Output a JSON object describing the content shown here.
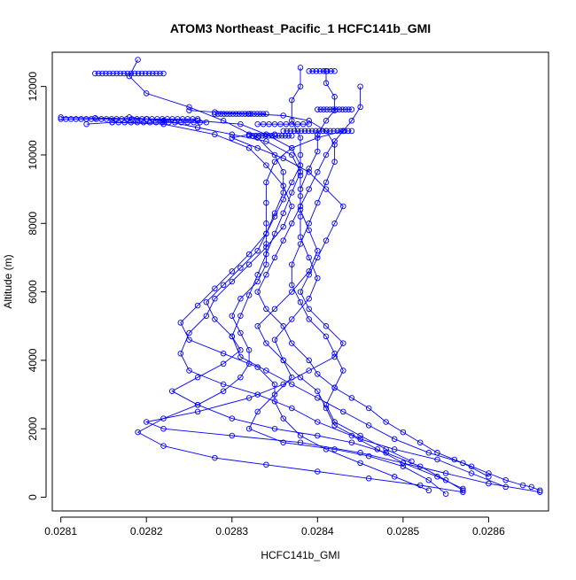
{
  "chart_data": {
    "type": "line",
    "title": "ATOM3 Northeast_Pacific_1 HCFC141b_GMI",
    "xlabel": "HCFC141b_GMI",
    "ylabel": "Altitude (m)",
    "xlim": [
      0.02809,
      0.02867
    ],
    "ylim": [
      -400,
      13000
    ],
    "xticks": [
      0.0281,
      0.0282,
      0.0283,
      0.0284,
      0.0285,
      0.0286
    ],
    "xtick_labels": [
      "0.0281",
      "0.0282",
      "0.0283",
      "0.0284",
      "0.0285",
      "0.0286"
    ],
    "yticks": [
      0,
      2000,
      4000,
      6000,
      8000,
      10000,
      12000
    ],
    "ytick_labels": [
      "0",
      "2000",
      "4000",
      "6000",
      "8000",
      "10000",
      "12000"
    ],
    "grid": false,
    "legend": "none",
    "marker": "open-circle",
    "colors": {
      "series": "#0000ff",
      "axes": "#000000",
      "background": "#ffffff"
    },
    "series": [
      {
        "points": [
          [
            0.02866,
            200
          ],
          [
            0.02865,
            300
          ],
          [
            0.02864,
            350
          ],
          [
            0.02862,
            500
          ],
          [
            0.0286,
            700
          ],
          [
            0.02858,
            900
          ],
          [
            0.02856,
            1100
          ],
          [
            0.02854,
            1300
          ],
          [
            0.02852,
            1600
          ],
          [
            0.0285,
            1900
          ],
          [
            0.02848,
            2200
          ],
          [
            0.02846,
            2600
          ],
          [
            0.02844,
            2900
          ],
          [
            0.02842,
            3200
          ],
          [
            0.0284,
            3600
          ],
          [
            0.02839,
            4000
          ],
          [
            0.02837,
            4500
          ],
          [
            0.02836,
            5000
          ],
          [
            0.02834,
            5500
          ],
          [
            0.02833,
            6000
          ],
          [
            0.02834,
            6500
          ],
          [
            0.02835,
            7000
          ],
          [
            0.02836,
            7500
          ],
          [
            0.02837,
            8000
          ],
          [
            0.02838,
            8500
          ],
          [
            0.02839,
            9000
          ],
          [
            0.0284,
            9500
          ],
          [
            0.02841,
            10000
          ],
          [
            0.02842,
            10400
          ],
          [
            0.02843,
            10700
          ]
        ]
      },
      {
        "points": [
          [
            0.02857,
            200
          ],
          [
            0.02855,
            500
          ],
          [
            0.02852,
            900
          ],
          [
            0.02848,
            1300
          ],
          [
            0.02844,
            1600
          ],
          [
            0.0284,
            1800
          ],
          [
            0.02835,
            2000
          ],
          [
            0.0283,
            2300
          ],
          [
            0.02826,
            2700
          ],
          [
            0.02823,
            3100
          ],
          [
            0.02826,
            3500
          ],
          [
            0.02829,
            3900
          ],
          [
            0.02831,
            4300
          ],
          [
            0.0283,
            4700
          ],
          [
            0.02828,
            5200
          ],
          [
            0.02827,
            5700
          ],
          [
            0.02829,
            6200
          ],
          [
            0.02831,
            6700
          ],
          [
            0.02833,
            7200
          ],
          [
            0.02834,
            7700
          ],
          [
            0.02835,
            8200
          ],
          [
            0.02836,
            8700
          ],
          [
            0.02837,
            9200
          ],
          [
            0.02838,
            9700
          ],
          [
            0.02837,
            10200
          ],
          [
            0.02834,
            10600
          ],
          [
            0.02831,
            10900
          ],
          [
            0.02826,
            11000
          ],
          [
            0.0282,
            11050
          ],
          [
            0.02814,
            11080
          ],
          [
            0.0281,
            11100
          ]
        ]
      },
      {
        "points": [
          [
            0.02866,
            150
          ],
          [
            0.0286,
            400
          ],
          [
            0.02855,
            700
          ],
          [
            0.0285,
            1000
          ],
          [
            0.02845,
            1300
          ],
          [
            0.02838,
            1600
          ],
          [
            0.0283,
            1800
          ],
          [
            0.02822,
            2000
          ],
          [
            0.0282,
            2200
          ],
          [
            0.02826,
            2500
          ],
          [
            0.02832,
            2900
          ],
          [
            0.02836,
            3300
          ],
          [
            0.02839,
            3700
          ],
          [
            0.02842,
            4100
          ],
          [
            0.02843,
            4500
          ],
          [
            0.02841,
            5000
          ],
          [
            0.02839,
            5500
          ],
          [
            0.02838,
            6000
          ],
          [
            0.02839,
            6500
          ],
          [
            0.0284,
            7000
          ],
          [
            0.02841,
            7500
          ],
          [
            0.02842,
            8000
          ],
          [
            0.02843,
            8500
          ],
          [
            0.02841,
            9000
          ],
          [
            0.02839,
            9500
          ],
          [
            0.02836,
            9900
          ],
          [
            0.02833,
            10200
          ],
          [
            0.0283,
            10500
          ],
          [
            0.02832,
            10600
          ],
          [
            0.02835,
            10600
          ]
        ]
      },
      {
        "points": [
          [
            0.02857,
            250
          ],
          [
            0.02854,
            600
          ],
          [
            0.0285,
            1000
          ],
          [
            0.02847,
            1400
          ],
          [
            0.02844,
            1800
          ],
          [
            0.0284,
            2200
          ],
          [
            0.02837,
            2600
          ],
          [
            0.02833,
            3000
          ],
          [
            0.02829,
            3300
          ],
          [
            0.02825,
            3700
          ],
          [
            0.02824,
            4200
          ],
          [
            0.02825,
            4800
          ],
          [
            0.02827,
            5300
          ],
          [
            0.02828,
            5800
          ],
          [
            0.0283,
            6300
          ],
          [
            0.02832,
            6800
          ],
          [
            0.02834,
            7300
          ],
          [
            0.02836,
            7900
          ],
          [
            0.02837,
            8500
          ],
          [
            0.02836,
            9100
          ],
          [
            0.02834,
            9700
          ],
          [
            0.02832,
            10200
          ],
          [
            0.02828,
            10600
          ],
          [
            0.02822,
            10900
          ],
          [
            0.02816,
            10950
          ],
          [
            0.02813,
            10900
          ]
        ]
      },
      {
        "points": [
          [
            0.02855,
            100
          ],
          [
            0.02853,
            500
          ],
          [
            0.0285,
            900
          ],
          [
            0.02846,
            1200
          ],
          [
            0.02842,
            1400
          ],
          [
            0.02836,
            1600
          ],
          [
            0.02832,
            2000
          ],
          [
            0.02833,
            2500
          ],
          [
            0.02835,
            3000
          ],
          [
            0.02837,
            3500
          ],
          [
            0.02836,
            4000
          ],
          [
            0.02834,
            4500
          ],
          [
            0.02833,
            5000
          ],
          [
            0.02835,
            5500
          ],
          [
            0.02837,
            6000
          ],
          [
            0.02839,
            6600
          ],
          [
            0.0284,
            7200
          ],
          [
            0.02839,
            7800
          ],
          [
            0.02838,
            8400
          ],
          [
            0.02838,
            9000
          ],
          [
            0.02839,
            9600
          ],
          [
            0.0284,
            10100
          ],
          [
            0.0284,
            10600
          ],
          [
            0.02841,
            11000
          ],
          [
            0.02842,
            11300
          ],
          [
            0.02842,
            11700
          ],
          [
            0.02841,
            12100
          ],
          [
            0.02841,
            12450
          ]
        ]
      },
      {
        "points": [
          [
            0.02862,
            300
          ],
          [
            0.02858,
            700
          ],
          [
            0.02854,
            1100
          ],
          [
            0.02849,
            1400
          ],
          [
            0.02845,
            1700
          ],
          [
            0.02842,
            2100
          ],
          [
            0.02841,
            2600
          ],
          [
            0.0284,
            3100
          ],
          [
            0.02838,
            3500
          ],
          [
            0.02836,
            4000
          ],
          [
            0.02835,
            4600
          ],
          [
            0.02837,
            5200
          ],
          [
            0.02839,
            5800
          ],
          [
            0.0284,
            6400
          ],
          [
            0.02839,
            7000
          ],
          [
            0.02838,
            7600
          ],
          [
            0.02838,
            8200
          ],
          [
            0.02838,
            8800
          ],
          [
            0.02838,
            9400
          ],
          [
            0.02838,
            10000
          ],
          [
            0.02838,
            10500
          ],
          [
            0.02837,
            11000
          ],
          [
            0.02837,
            11600
          ],
          [
            0.02838,
            12000
          ],
          [
            0.02838,
            12550
          ]
        ]
      },
      {
        "points": [
          [
            0.0286,
            600
          ],
          [
            0.02857,
            1000
          ],
          [
            0.02853,
            1300
          ],
          [
            0.02849,
            1700
          ],
          [
            0.02846,
            2100
          ],
          [
            0.02843,
            2500
          ],
          [
            0.0284,
            2900
          ],
          [
            0.02837,
            3300
          ],
          [
            0.02834,
            3700
          ],
          [
            0.02831,
            4100
          ],
          [
            0.0283,
            4700
          ],
          [
            0.02831,
            5300
          ],
          [
            0.02832,
            5900
          ],
          [
            0.02833,
            6500
          ],
          [
            0.02834,
            7100
          ],
          [
            0.02835,
            7700
          ],
          [
            0.02836,
            8300
          ],
          [
            0.02837,
            8900
          ],
          [
            0.02838,
            9500
          ],
          [
            0.02837,
            10000
          ],
          [
            0.02834,
            10400
          ],
          [
            0.0283,
            10600
          ],
          [
            0.02826,
            10800
          ],
          [
            0.02822,
            11000
          ],
          [
            0.02818,
            11100
          ]
        ]
      },
      {
        "points": [
          [
            0.02857,
            150
          ],
          [
            0.02852,
            350
          ],
          [
            0.02846,
            550
          ],
          [
            0.0284,
            750
          ],
          [
            0.02834,
            950
          ],
          [
            0.02828,
            1150
          ],
          [
            0.02822,
            1500
          ],
          [
            0.02819,
            1900
          ],
          [
            0.02822,
            2300
          ],
          [
            0.02826,
            2700
          ],
          [
            0.02829,
            3100
          ],
          [
            0.02831,
            3500
          ],
          [
            0.02832,
            3900
          ],
          [
            0.02832,
            4300
          ],
          [
            0.02831,
            4800
          ],
          [
            0.0283,
            5300
          ],
          [
            0.02831,
            5800
          ],
          [
            0.02833,
            6300
          ],
          [
            0.02834,
            6800
          ],
          [
            0.02834,
            7400
          ],
          [
            0.02834,
            8000
          ],
          [
            0.02834,
            8600
          ],
          [
            0.02834,
            9200
          ],
          [
            0.02835,
            9800
          ],
          [
            0.02837,
            10200
          ],
          [
            0.0284,
            10500
          ],
          [
            0.02843,
            10700
          ],
          [
            0.02844,
            11000
          ],
          [
            0.02845,
            11400
          ],
          [
            0.02845,
            12000
          ]
        ]
      },
      {
        "points": [
          [
            0.02853,
            200
          ],
          [
            0.02849,
            600
          ],
          [
            0.02845,
            1000
          ],
          [
            0.02841,
            1400
          ],
          [
            0.02838,
            1800
          ],
          [
            0.02836,
            2300
          ],
          [
            0.02835,
            2800
          ],
          [
            0.02835,
            3300
          ],
          [
            0.02833,
            3800
          ],
          [
            0.02829,
            4200
          ],
          [
            0.02825,
            4600
          ],
          [
            0.02824,
            5100
          ],
          [
            0.02826,
            5600
          ],
          [
            0.02828,
            6100
          ],
          [
            0.0283,
            6600
          ],
          [
            0.02832,
            7100
          ],
          [
            0.02834,
            7700
          ],
          [
            0.02835,
            8300
          ],
          [
            0.02836,
            8900
          ],
          [
            0.02836,
            9500
          ],
          [
            0.02835,
            10000
          ],
          [
            0.02833,
            10500
          ],
          [
            0.02829,
            11000
          ],
          [
            0.02825,
            11400
          ],
          [
            0.0282,
            11800
          ],
          [
            0.02818,
            12300
          ],
          [
            0.02819,
            12780
          ]
        ]
      },
      {
        "points": [
          [
            0.02851,
            1050
          ],
          [
            0.02848,
            1400
          ],
          [
            0.02845,
            1800
          ],
          [
            0.02842,
            2200
          ],
          [
            0.02841,
            2700
          ],
          [
            0.02842,
            3200
          ],
          [
            0.02843,
            3700
          ],
          [
            0.02842,
            4200
          ],
          [
            0.02841,
            4700
          ],
          [
            0.02839,
            5200
          ],
          [
            0.02838,
            5700
          ],
          [
            0.02837,
            6200
          ],
          [
            0.02837,
            6800
          ],
          [
            0.02838,
            7400
          ],
          [
            0.02839,
            8000
          ],
          [
            0.0284,
            8600
          ],
          [
            0.02841,
            9200
          ],
          [
            0.02842,
            9800
          ],
          [
            0.02842,
            10300
          ],
          [
            0.02841,
            10700
          ],
          [
            0.02839,
            11000
          ],
          [
            0.02836,
            11150
          ],
          [
            0.02832,
            11200
          ],
          [
            0.02828,
            11250
          ],
          [
            0.02825,
            11300
          ]
        ]
      }
    ],
    "clusters": [
      {
        "x_start": 0.02814,
        "x_end": 0.02822,
        "y": 12380,
        "count": 20
      },
      {
        "x_start": 0.0281,
        "x_end": 0.02826,
        "y": 11050,
        "count": 28
      },
      {
        "x_start": 0.02816,
        "x_end": 0.02827,
        "y": 10950,
        "count": 16
      },
      {
        "x_start": 0.02828,
        "x_end": 0.02834,
        "y": 11200,
        "count": 18
      },
      {
        "x_start": 0.02832,
        "x_end": 0.02837,
        "y": 10560,
        "count": 14
      },
      {
        "x_start": 0.02836,
        "x_end": 0.02844,
        "y": 10700,
        "count": 20
      },
      {
        "x_start": 0.0284,
        "x_end": 0.02844,
        "y": 11330,
        "count": 12
      },
      {
        "x_start": 0.02839,
        "x_end": 0.02842,
        "y": 12450,
        "count": 8
      },
      {
        "x_start": 0.02833,
        "x_end": 0.02839,
        "y": 10900,
        "count": 10
      }
    ]
  }
}
